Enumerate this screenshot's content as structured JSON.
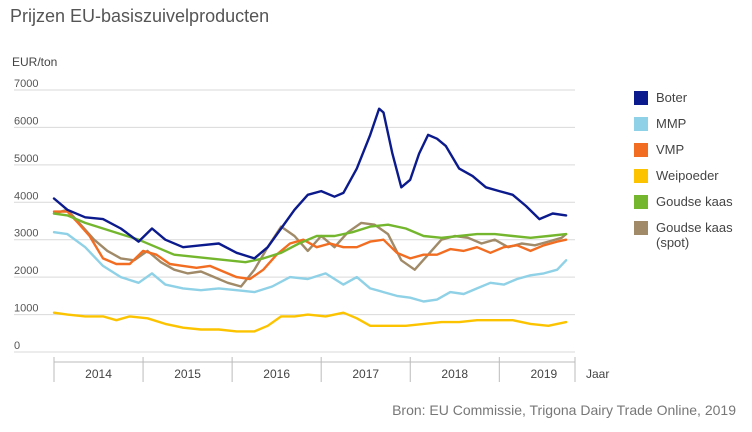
{
  "title": "Prijzen EU-basiszuivelproducten",
  "source": "Bron: EU Commissie, Trigona Dairy Trade Online, 2019",
  "chart_data": {
    "type": "line",
    "ylabel": "EUR/ton",
    "xlabel": "Jaar",
    "ylim": [
      0,
      7000
    ],
    "xlim": [
      2013.75,
      2019.6
    ],
    "yticks": [
      0,
      1000,
      2000,
      3000,
      4000,
      5000,
      6000,
      7000
    ],
    "ytick_labels": [
      "0",
      "1000",
      "2000",
      "3000",
      "4000",
      "5000",
      "6000",
      "7000"
    ],
    "xticks": [
      "2014",
      "2015",
      "2016",
      "2017",
      "2018",
      "2019"
    ],
    "grid": true,
    "legend_position": "right",
    "series": [
      {
        "name": "Boter",
        "color": "#0b1a8c",
        "x": [
          2013.75,
          2013.9,
          2014.1,
          2014.3,
          2014.5,
          2014.7,
          2014.85,
          2015.0,
          2015.2,
          2015.4,
          2015.6,
          2015.8,
          2016.0,
          2016.15,
          2016.3,
          2016.45,
          2016.6,
          2016.75,
          2016.9,
          2017.0,
          2017.15,
          2017.3,
          2017.4,
          2017.45,
          2017.55,
          2017.65,
          2017.75,
          2017.85,
          2017.95,
          2018.05,
          2018.15,
          2018.3,
          2018.45,
          2018.6,
          2018.75,
          2018.9,
          2019.05,
          2019.2,
          2019.35,
          2019.5
        ],
        "y": [
          4100,
          3800,
          3600,
          3550,
          3300,
          2950,
          3300,
          3000,
          2800,
          2850,
          2900,
          2650,
          2500,
          2800,
          3300,
          3800,
          4200,
          4300,
          4150,
          4250,
          4900,
          5800,
          6500,
          6400,
          5300,
          4400,
          4600,
          5300,
          5800,
          5700,
          5500,
          4900,
          4700,
          4400,
          4300,
          4200,
          3900,
          3550,
          3700,
          3650
        ]
      },
      {
        "name": "MMP",
        "color": "#8fd1e6",
        "x": [
          2013.75,
          2013.9,
          2014.1,
          2014.3,
          2014.5,
          2014.7,
          2014.85,
          2015.0,
          2015.2,
          2015.4,
          2015.6,
          2015.8,
          2016.0,
          2016.2,
          2016.4,
          2016.6,
          2016.8,
          2017.0,
          2017.15,
          2017.3,
          2017.45,
          2017.6,
          2017.75,
          2017.9,
          2018.05,
          2018.2,
          2018.35,
          2018.5,
          2018.65,
          2018.8,
          2018.95,
          2019.1,
          2019.25,
          2019.4,
          2019.5
        ],
        "y": [
          3200,
          3150,
          2800,
          2300,
          2000,
          1850,
          2100,
          1800,
          1700,
          1650,
          1700,
          1650,
          1600,
          1750,
          2000,
          1950,
          2100,
          1800,
          2000,
          1700,
          1600,
          1500,
          1450,
          1350,
          1400,
          1600,
          1550,
          1700,
          1850,
          1800,
          1950,
          2050,
          2100,
          2200,
          2450
        ]
      },
      {
        "name": "VMP",
        "color": "#f26d21",
        "x": [
          2013.75,
          2013.9,
          2014.0,
          2014.15,
          2014.3,
          2014.45,
          2014.6,
          2014.75,
          2014.9,
          2015.05,
          2015.2,
          2015.35,
          2015.5,
          2015.65,
          2015.8,
          2015.95,
          2016.1,
          2016.25,
          2016.4,
          2016.55,
          2016.7,
          2016.85,
          2017.0,
          2017.15,
          2017.3,
          2017.45,
          2017.6,
          2017.75,
          2017.9,
          2018.05,
          2018.2,
          2018.35,
          2018.5,
          2018.65,
          2018.8,
          2018.95,
          2019.1,
          2019.25,
          2019.4,
          2019.5
        ],
        "y": [
          3750,
          3750,
          3500,
          3100,
          2500,
          2350,
          2350,
          2700,
          2600,
          2350,
          2300,
          2250,
          2300,
          2150,
          2000,
          1950,
          2200,
          2600,
          2900,
          3000,
          2800,
          2900,
          2800,
          2800,
          2950,
          3000,
          2650,
          2500,
          2600,
          2600,
          2750,
          2700,
          2800,
          2650,
          2800,
          2850,
          2700,
          2850,
          2950,
          3000
        ]
      },
      {
        "name": "Weipoeder",
        "color": "#fcc400",
        "x": [
          2013.75,
          2013.9,
          2014.1,
          2014.3,
          2014.45,
          2014.6,
          2014.8,
          2015.0,
          2015.2,
          2015.4,
          2015.6,
          2015.8,
          2016.0,
          2016.15,
          2016.3,
          2016.45,
          2016.6,
          2016.8,
          2017.0,
          2017.15,
          2017.3,
          2017.5,
          2017.7,
          2017.9,
          2018.1,
          2018.3,
          2018.5,
          2018.7,
          2018.9,
          2019.1,
          2019.3,
          2019.5
        ],
        "y": [
          1050,
          1000,
          950,
          950,
          850,
          950,
          900,
          750,
          650,
          600,
          600,
          550,
          550,
          700,
          950,
          950,
          1000,
          950,
          1050,
          900,
          700,
          700,
          700,
          750,
          800,
          800,
          850,
          850,
          850,
          750,
          700,
          800
        ]
      },
      {
        "name": "Goudse kaas",
        "color": "#74b72e",
        "x": [
          2013.75,
          2013.9,
          2014.1,
          2014.3,
          2014.5,
          2014.7,
          2014.9,
          2015.1,
          2015.3,
          2015.5,
          2015.7,
          2015.9,
          2016.1,
          2016.3,
          2016.5,
          2016.7,
          2016.9,
          2017.1,
          2017.3,
          2017.5,
          2017.7,
          2017.9,
          2018.1,
          2018.3,
          2018.5,
          2018.7,
          2018.9,
          2019.1,
          2019.3,
          2019.5
        ],
        "y": [
          3700,
          3650,
          3450,
          3300,
          3150,
          3000,
          2800,
          2600,
          2550,
          2500,
          2450,
          2400,
          2500,
          2650,
          2900,
          3100,
          3100,
          3200,
          3350,
          3400,
          3300,
          3100,
          3050,
          3100,
          3150,
          3150,
          3100,
          3050,
          3100,
          3150
        ]
      },
      {
        "name": "Goudse kaas (spot)",
        "color": "#a08a68",
        "x": [
          2013.75,
          2013.9,
          2014.05,
          2014.2,
          2014.35,
          2014.5,
          2014.65,
          2014.8,
          2014.95,
          2015.1,
          2015.25,
          2015.4,
          2015.55,
          2015.7,
          2015.85,
          2016.0,
          2016.15,
          2016.3,
          2016.45,
          2016.6,
          2016.75,
          2016.9,
          2017.05,
          2017.2,
          2017.35,
          2017.5,
          2017.65,
          2017.8,
          2017.95,
          2018.1,
          2018.25,
          2018.4,
          2018.55,
          2018.7,
          2018.85,
          2019.0,
          2019.15,
          2019.3,
          2019.45,
          2019.5
        ],
        "y": [
          3700,
          3800,
          3400,
          3000,
          2700,
          2500,
          2450,
          2700,
          2400,
          2200,
          2100,
          2150,
          2000,
          1850,
          1750,
          2200,
          2800,
          3350,
          3100,
          2700,
          3100,
          2800,
          3200,
          3450,
          3400,
          3150,
          2450,
          2200,
          2600,
          3000,
          3100,
          3050,
          2900,
          3000,
          2800,
          2900,
          2850,
          2950,
          3050,
          3150
        ]
      }
    ]
  }
}
